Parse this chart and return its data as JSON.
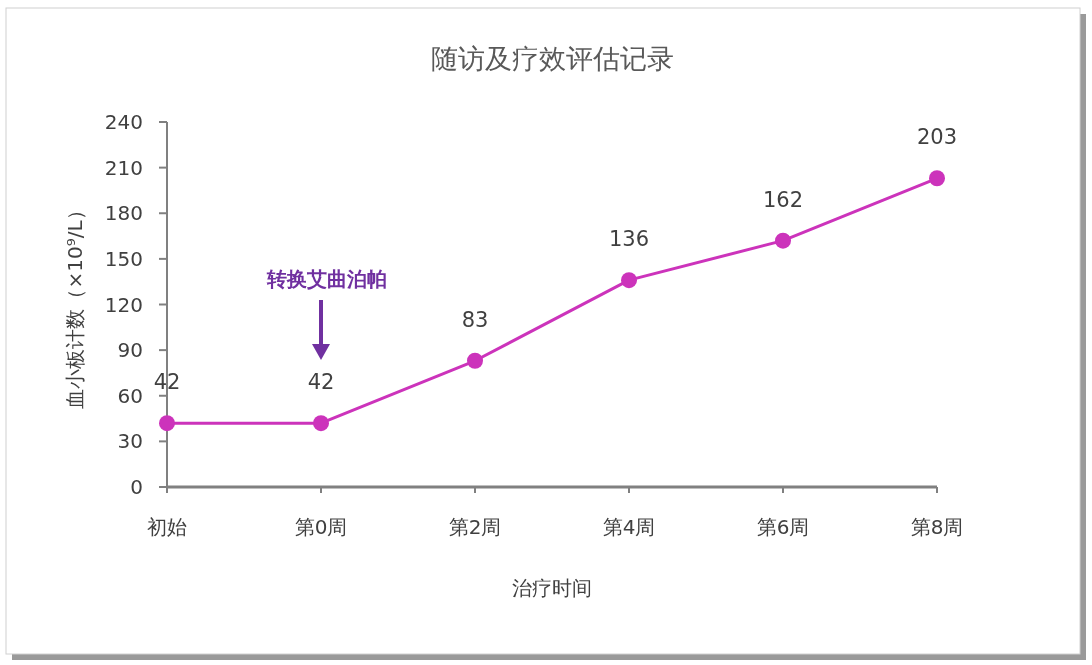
{
  "chart_data": {
    "type": "line",
    "title": "随访及疗效评估记录",
    "xlabel": "治疗时间",
    "ylabel": "血小板计数（×10⁹/L）",
    "categories": [
      "初始",
      "第0周",
      "第2周",
      "第4周",
      "第6周",
      "第8周"
    ],
    "series": [
      {
        "color": "#cc33bb",
        "values": [
          42,
          42,
          83,
          136,
          162,
          203
        ]
      }
    ],
    "ylim": [
      0,
      240
    ],
    "yticks": [
      0,
      30,
      60,
      90,
      120,
      150,
      180,
      210,
      240
    ],
    "data_labels": true,
    "marker": "circle",
    "line_style": "solid",
    "grid": false,
    "annotations": [
      "转换艾曲泊帕"
    ]
  }
}
